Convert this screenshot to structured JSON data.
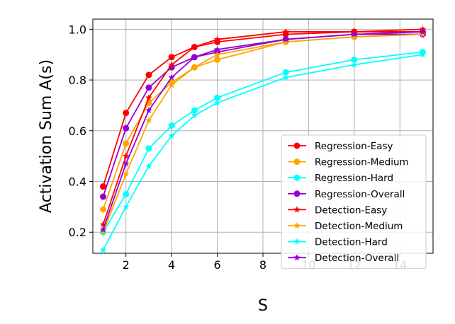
{
  "chart_data": {
    "type": "line",
    "title": "",
    "xlabel": "S",
    "ylabel": "Activation Sum A(s)",
    "xlim": [
      0.55,
      15.45
    ],
    "ylim": [
      0.117,
      1.04
    ],
    "x_ticks": [
      2,
      4,
      6,
      8,
      10,
      12,
      14
    ],
    "y_ticks": [
      0.2,
      0.4,
      0.6,
      0.8,
      1.0
    ],
    "x_tick_labels": [
      "2",
      "4",
      "6",
      "8",
      "10",
      "12",
      "14"
    ],
    "y_tick_labels": [
      "0.2",
      "0.4",
      "0.6",
      "0.8",
      "1.0"
    ],
    "grid": true,
    "legend_position": "lower-right",
    "x": [
      1,
      2,
      3,
      4,
      5,
      6,
      9,
      12,
      15
    ],
    "series": [
      {
        "name": "Regression-Easy",
        "color": "#ff0000",
        "marker": "circle",
        "values": [
          0.38,
          0.67,
          0.82,
          0.89,
          0.93,
          0.95,
          0.98,
          0.99,
          0.99
        ]
      },
      {
        "name": "Regression-Medium",
        "color": "#ffa500",
        "marker": "circle",
        "values": [
          0.29,
          0.55,
          0.71,
          0.79,
          0.85,
          0.88,
          0.95,
          0.97,
          0.98
        ]
      },
      {
        "name": "Regression-Hard",
        "color": "#00ffff",
        "marker": "circle",
        "values": [
          0.2,
          0.35,
          0.53,
          0.62,
          0.68,
          0.73,
          0.83,
          0.88,
          0.91
        ]
      },
      {
        "name": "Regression-Overall",
        "color": "#9400d3",
        "marker": "circle",
        "values": [
          0.34,
          0.61,
          0.77,
          0.85,
          0.89,
          0.91,
          0.96,
          0.98,
          0.98
        ]
      },
      {
        "name": "Detection-Easy",
        "color": "#ff0000",
        "marker": "star",
        "values": [
          0.23,
          0.5,
          0.73,
          0.86,
          0.93,
          0.96,
          0.99,
          0.99,
          1.0
        ]
      },
      {
        "name": "Detection-Medium",
        "color": "#ffa500",
        "marker": "star",
        "values": [
          0.2,
          0.43,
          0.64,
          0.78,
          0.85,
          0.9,
          0.95,
          0.97,
          0.98
        ]
      },
      {
        "name": "Detection-Hard",
        "color": "#00ffff",
        "marker": "star",
        "values": [
          0.13,
          0.3,
          0.46,
          0.58,
          0.66,
          0.71,
          0.81,
          0.86,
          0.9
        ]
      },
      {
        "name": "Detection-Overall",
        "color": "#9400d3",
        "marker": "star",
        "values": [
          0.21,
          0.47,
          0.68,
          0.81,
          0.89,
          0.92,
          0.96,
          0.98,
          0.99
        ]
      }
    ]
  }
}
